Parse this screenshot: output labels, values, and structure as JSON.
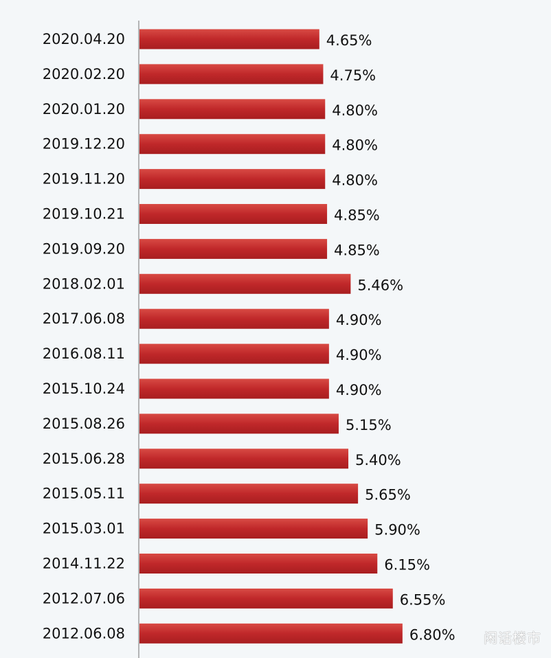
{
  "chart_data": {
    "type": "bar",
    "orientation": "horizontal",
    "categories": [
      "2020.04.20",
      "2020.02.20",
      "2020.01.20",
      "2019.12.20",
      "2019.11.20",
      "2019.10.21",
      "2019.09.20",
      "2018.02.01",
      "2017.06.08",
      "2016.08.11",
      "2015.10.24",
      "2015.08.26",
      "2015.06.28",
      "2015.05.11",
      "2015.03.01",
      "2014.11.22",
      "2012.07.06",
      "2012.06.08"
    ],
    "values": [
      4.65,
      4.75,
      4.8,
      4.8,
      4.8,
      4.85,
      4.85,
      5.46,
      4.9,
      4.9,
      4.9,
      5.15,
      5.4,
      5.65,
      5.9,
      6.15,
      6.55,
      6.8
    ],
    "data_labels": [
      "4.65%",
      "4.75%",
      "4.80%",
      "4.80%",
      "4.80%",
      "4.85%",
      "4.85%",
      "5.46%",
      "4.90%",
      "4.90%",
      "4.90%",
      "5.15%",
      "5.40%",
      "5.65%",
      "5.90%",
      "6.15%",
      "6.55%",
      "6.80%"
    ],
    "unit": "%",
    "xlim": [
      0,
      7
    ],
    "grid": false,
    "bar_color": "#c0282a",
    "title": ""
  },
  "watermark": "闲话楼市"
}
